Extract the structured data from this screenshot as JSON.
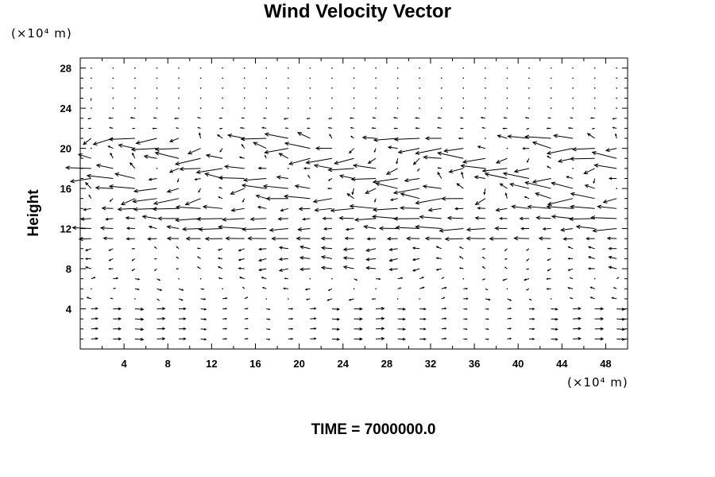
{
  "chart_data": {
    "type": "vector-field",
    "title": "Wind Velocity Vector",
    "ylabel": "Height",
    "xunit": "(×10⁴ m)",
    "yunit": "(×10⁴ m)",
    "xlim": [
      0,
      50
    ],
    "ylim": [
      0,
      29
    ],
    "xticks": [
      4,
      8,
      12,
      16,
      20,
      24,
      28,
      32,
      36,
      40,
      44,
      48
    ],
    "yticks": [
      4,
      8,
      12,
      16,
      20,
      24,
      28
    ],
    "grid": false,
    "grid_spacing": {
      "dx": 2,
      "dy": 1
    },
    "field_description": "dominant eastward flow near surface, westward jets near 11-14 and 17-20, strong variable wind between 12 and 21, calm above 22"
  },
  "footer": {
    "time_label": "TIME = 7000000.0"
  }
}
